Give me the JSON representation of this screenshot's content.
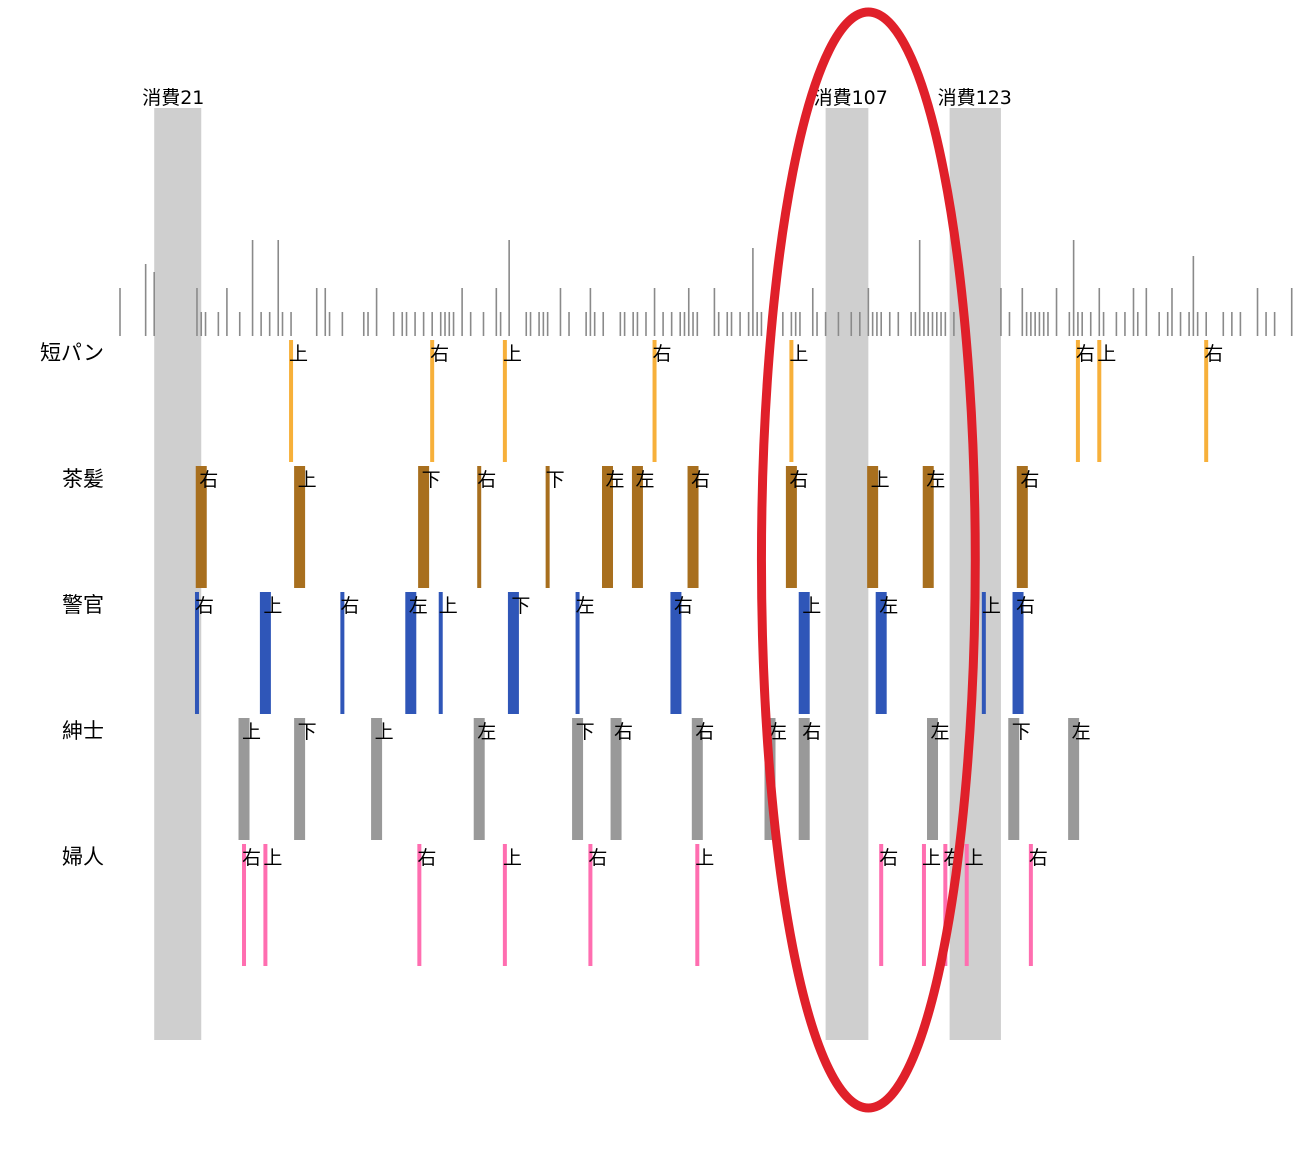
{
  "chart_data": {
    "type": "timeline",
    "title": "",
    "xlabel": "",
    "ylabel": "",
    "xlim": [
      0,
      275
    ],
    "highlight_color": "#e0202a",
    "band_color": "#cfcfcf",
    "bands": [
      {
        "label": "消費21",
        "start": 8,
        "end": 19
      },
      {
        "label": "消費107",
        "start": 165,
        "end": 175
      },
      {
        "label": "消費123",
        "start": 194,
        "end": 206
      }
    ],
    "highlight": {
      "start": 150,
      "end": 200
    },
    "activity": [
      {
        "x": 0,
        "h": 0.6
      },
      {
        "x": 6,
        "h": 0.9
      },
      {
        "x": 8,
        "h": 0.8
      },
      {
        "x": 18,
        "h": 0.6
      },
      {
        "x": 19,
        "h": 0.3
      },
      {
        "x": 20,
        "h": 0.3
      },
      {
        "x": 23,
        "h": 0.3
      },
      {
        "x": 25,
        "h": 0.6
      },
      {
        "x": 28,
        "h": 0.3
      },
      {
        "x": 31,
        "h": 1.2
      },
      {
        "x": 33,
        "h": 0.3
      },
      {
        "x": 35,
        "h": 0.3
      },
      {
        "x": 37,
        "h": 1.2
      },
      {
        "x": 38,
        "h": 0.3
      },
      {
        "x": 40,
        "h": 0.3
      },
      {
        "x": 46,
        "h": 0.6
      },
      {
        "x": 48,
        "h": 0.6
      },
      {
        "x": 49,
        "h": 0.3
      },
      {
        "x": 52,
        "h": 0.3
      },
      {
        "x": 57,
        "h": 0.3
      },
      {
        "x": 58,
        "h": 0.3
      },
      {
        "x": 60,
        "h": 0.6
      },
      {
        "x": 64,
        "h": 0.3
      },
      {
        "x": 66,
        "h": 0.3
      },
      {
        "x": 67,
        "h": 0.3
      },
      {
        "x": 69,
        "h": 0.3
      },
      {
        "x": 71,
        "h": 0.3
      },
      {
        "x": 73,
        "h": 0.3
      },
      {
        "x": 75,
        "h": 0.3
      },
      {
        "x": 76,
        "h": 0.3
      },
      {
        "x": 77,
        "h": 0.3
      },
      {
        "x": 78,
        "h": 0.3
      },
      {
        "x": 80,
        "h": 0.6
      },
      {
        "x": 82,
        "h": 0.3
      },
      {
        "x": 85,
        "h": 0.3
      },
      {
        "x": 88,
        "h": 0.6
      },
      {
        "x": 89,
        "h": 0.3
      },
      {
        "x": 91,
        "h": 1.2
      },
      {
        "x": 95,
        "h": 0.3
      },
      {
        "x": 96,
        "h": 0.3
      },
      {
        "x": 98,
        "h": 0.3
      },
      {
        "x": 99,
        "h": 0.3
      },
      {
        "x": 100,
        "h": 0.3
      },
      {
        "x": 103,
        "h": 0.6
      },
      {
        "x": 105,
        "h": 0.3
      },
      {
        "x": 109,
        "h": 0.3
      },
      {
        "x": 110,
        "h": 0.6
      },
      {
        "x": 111,
        "h": 0.3
      },
      {
        "x": 113,
        "h": 0.3
      },
      {
        "x": 117,
        "h": 0.3
      },
      {
        "x": 118,
        "h": 0.3
      },
      {
        "x": 120,
        "h": 0.3
      },
      {
        "x": 121,
        "h": 0.3
      },
      {
        "x": 123,
        "h": 0.3
      },
      {
        "x": 125,
        "h": 0.6
      },
      {
        "x": 127,
        "h": 0.3
      },
      {
        "x": 129,
        "h": 0.3
      },
      {
        "x": 131,
        "h": 0.3
      },
      {
        "x": 132,
        "h": 0.3
      },
      {
        "x": 133,
        "h": 0.6
      },
      {
        "x": 134,
        "h": 0.3
      },
      {
        "x": 135,
        "h": 0.3
      },
      {
        "x": 139,
        "h": 0.6
      },
      {
        "x": 140,
        "h": 0.3
      },
      {
        "x": 142,
        "h": 0.3
      },
      {
        "x": 143,
        "h": 0.3
      },
      {
        "x": 145,
        "h": 0.3
      },
      {
        "x": 147,
        "h": 0.3
      },
      {
        "x": 148,
        "h": 1.1
      },
      {
        "x": 149,
        "h": 0.3
      },
      {
        "x": 150,
        "h": 0.3
      },
      {
        "x": 152,
        "h": 0.3
      },
      {
        "x": 153,
        "h": 0.3
      },
      {
        "x": 155,
        "h": 0.3
      },
      {
        "x": 157,
        "h": 0.3
      },
      {
        "x": 158,
        "h": 0.3
      },
      {
        "x": 159,
        "h": 0.3
      },
      {
        "x": 162,
        "h": 0.6
      },
      {
        "x": 163,
        "h": 0.3
      },
      {
        "x": 165,
        "h": 0.3
      },
      {
        "x": 168,
        "h": 0.3
      },
      {
        "x": 171,
        "h": 0.3
      },
      {
        "x": 173,
        "h": 0.3
      },
      {
        "x": 175,
        "h": 0.6
      },
      {
        "x": 176,
        "h": 0.3
      },
      {
        "x": 177,
        "h": 0.3
      },
      {
        "x": 178,
        "h": 0.3
      },
      {
        "x": 180,
        "h": 0.3
      },
      {
        "x": 182,
        "h": 0.3
      },
      {
        "x": 185,
        "h": 0.3
      },
      {
        "x": 186,
        "h": 0.3
      },
      {
        "x": 187,
        "h": 1.2
      },
      {
        "x": 188,
        "h": 0.3
      },
      {
        "x": 189,
        "h": 0.3
      },
      {
        "x": 190,
        "h": 0.3
      },
      {
        "x": 191,
        "h": 0.3
      },
      {
        "x": 192,
        "h": 0.3
      },
      {
        "x": 193,
        "h": 0.3
      },
      {
        "x": 195,
        "h": 0.3
      },
      {
        "x": 197,
        "h": 0.3
      },
      {
        "x": 206,
        "h": 0.6
      },
      {
        "x": 208,
        "h": 0.3
      },
      {
        "x": 211,
        "h": 0.6
      },
      {
        "x": 212,
        "h": 0.3
      },
      {
        "x": 213,
        "h": 0.3
      },
      {
        "x": 214,
        "h": 0.3
      },
      {
        "x": 215,
        "h": 0.3
      },
      {
        "x": 216,
        "h": 0.3
      },
      {
        "x": 217,
        "h": 0.3
      },
      {
        "x": 219,
        "h": 0.6
      },
      {
        "x": 222,
        "h": 0.3
      },
      {
        "x": 223,
        "h": 1.2
      },
      {
        "x": 224,
        "h": 0.3
      },
      {
        "x": 225,
        "h": 0.3
      },
      {
        "x": 227,
        "h": 0.3
      },
      {
        "x": 229,
        "h": 0.6
      },
      {
        "x": 230,
        "h": 0.3
      },
      {
        "x": 233,
        "h": 0.3
      },
      {
        "x": 235,
        "h": 0.3
      },
      {
        "x": 237,
        "h": 0.6
      },
      {
        "x": 238,
        "h": 0.3
      },
      {
        "x": 240,
        "h": 0.6
      },
      {
        "x": 243,
        "h": 0.3
      },
      {
        "x": 245,
        "h": 0.3
      },
      {
        "x": 246,
        "h": 0.6
      },
      {
        "x": 248,
        "h": 0.3
      },
      {
        "x": 250,
        "h": 0.3
      },
      {
        "x": 251,
        "h": 1.0
      },
      {
        "x": 252,
        "h": 0.3
      },
      {
        "x": 254,
        "h": 0.3
      },
      {
        "x": 258,
        "h": 0.3
      },
      {
        "x": 260,
        "h": 0.3
      },
      {
        "x": 262,
        "h": 0.3
      },
      {
        "x": 266,
        "h": 0.6
      },
      {
        "x": 268,
        "h": 0.3
      },
      {
        "x": 270,
        "h": 0.3
      },
      {
        "x": 274,
        "h": 0.6
      }
    ],
    "series": [
      {
        "name": "短パン",
        "color": "#f7b03a",
        "events": [
          {
            "x": 40,
            "label": "上",
            "w": 1
          },
          {
            "x": 73,
            "label": "右",
            "w": 1
          },
          {
            "x": 90,
            "label": "上",
            "w": 1
          },
          {
            "x": 125,
            "label": "右",
            "w": 1
          },
          {
            "x": 157,
            "label": "上",
            "w": 1
          },
          {
            "x": 224,
            "label": "右",
            "w": 1
          },
          {
            "x": 229,
            "label": "上",
            "w": 1
          },
          {
            "x": 254,
            "label": "右",
            "w": 1
          }
        ]
      },
      {
        "name": "茶髪",
        "color": "#a86f1e",
        "events": [
          {
            "x": 19,
            "label": "右",
            "w": 2
          },
          {
            "x": 42,
            "label": "上",
            "w": 2
          },
          {
            "x": 71,
            "label": "下",
            "w": 2
          },
          {
            "x": 84,
            "label": "右",
            "w": 1
          },
          {
            "x": 100,
            "label": "下",
            "w": 1
          },
          {
            "x": 114,
            "label": "左",
            "w": 2
          },
          {
            "x": 121,
            "label": "左",
            "w": 2
          },
          {
            "x": 134,
            "label": "右",
            "w": 2
          },
          {
            "x": 157,
            "label": "右",
            "w": 2
          },
          {
            "x": 176,
            "label": "上",
            "w": 2
          },
          {
            "x": 189,
            "label": "左",
            "w": 2
          },
          {
            "x": 211,
            "label": "右",
            "w": 2
          }
        ]
      },
      {
        "name": "警官",
        "color": "#2f56b8",
        "events": [
          {
            "x": 18,
            "label": "右",
            "w": 1
          },
          {
            "x": 34,
            "label": "上",
            "w": 2
          },
          {
            "x": 52,
            "label": "右",
            "w": 1
          },
          {
            "x": 68,
            "label": "左",
            "w": 2
          },
          {
            "x": 75,
            "label": "上",
            "w": 1
          },
          {
            "x": 92,
            "label": "下",
            "w": 2
          },
          {
            "x": 107,
            "label": "左",
            "w": 1
          },
          {
            "x": 130,
            "label": "右",
            "w": 2
          },
          {
            "x": 160,
            "label": "上",
            "w": 2
          },
          {
            "x": 178,
            "label": "左",
            "w": 2
          },
          {
            "x": 202,
            "label": "上",
            "w": 1
          },
          {
            "x": 210,
            "label": "右",
            "w": 2
          }
        ]
      },
      {
        "name": "紳士",
        "color": "#999999",
        "events": [
          {
            "x": 29,
            "label": "上",
            "w": 2
          },
          {
            "x": 42,
            "label": "下",
            "w": 2
          },
          {
            "x": 60,
            "label": "上",
            "w": 2
          },
          {
            "x": 84,
            "label": "左",
            "w": 2
          },
          {
            "x": 107,
            "label": "下",
            "w": 2
          },
          {
            "x": 116,
            "label": "右",
            "w": 2
          },
          {
            "x": 135,
            "label": "右",
            "w": 2
          },
          {
            "x": 152,
            "label": "左",
            "w": 2
          },
          {
            "x": 160,
            "label": "右",
            "w": 2
          },
          {
            "x": 190,
            "label": "左",
            "w": 2
          },
          {
            "x": 209,
            "label": "下",
            "w": 2
          },
          {
            "x": 223,
            "label": "左",
            "w": 2
          }
        ]
      },
      {
        "name": "婦人",
        "color": "#ff6eb0",
        "events": [
          {
            "x": 29,
            "label": "右",
            "w": 1
          },
          {
            "x": 34,
            "label": "上",
            "w": 1
          },
          {
            "x": 70,
            "label": "右",
            "w": 1
          },
          {
            "x": 90,
            "label": "上",
            "w": 1
          },
          {
            "x": 110,
            "label": "右",
            "w": 1
          },
          {
            "x": 135,
            "label": "上",
            "w": 1
          },
          {
            "x": 178,
            "label": "右",
            "w": 1
          },
          {
            "x": 188,
            "label": "上",
            "w": 1
          },
          {
            "x": 193,
            "label": "右",
            "w": 1
          },
          {
            "x": 198,
            "label": "上",
            "w": 1
          },
          {
            "x": 213,
            "label": "右",
            "w": 1
          }
        ]
      }
    ]
  }
}
